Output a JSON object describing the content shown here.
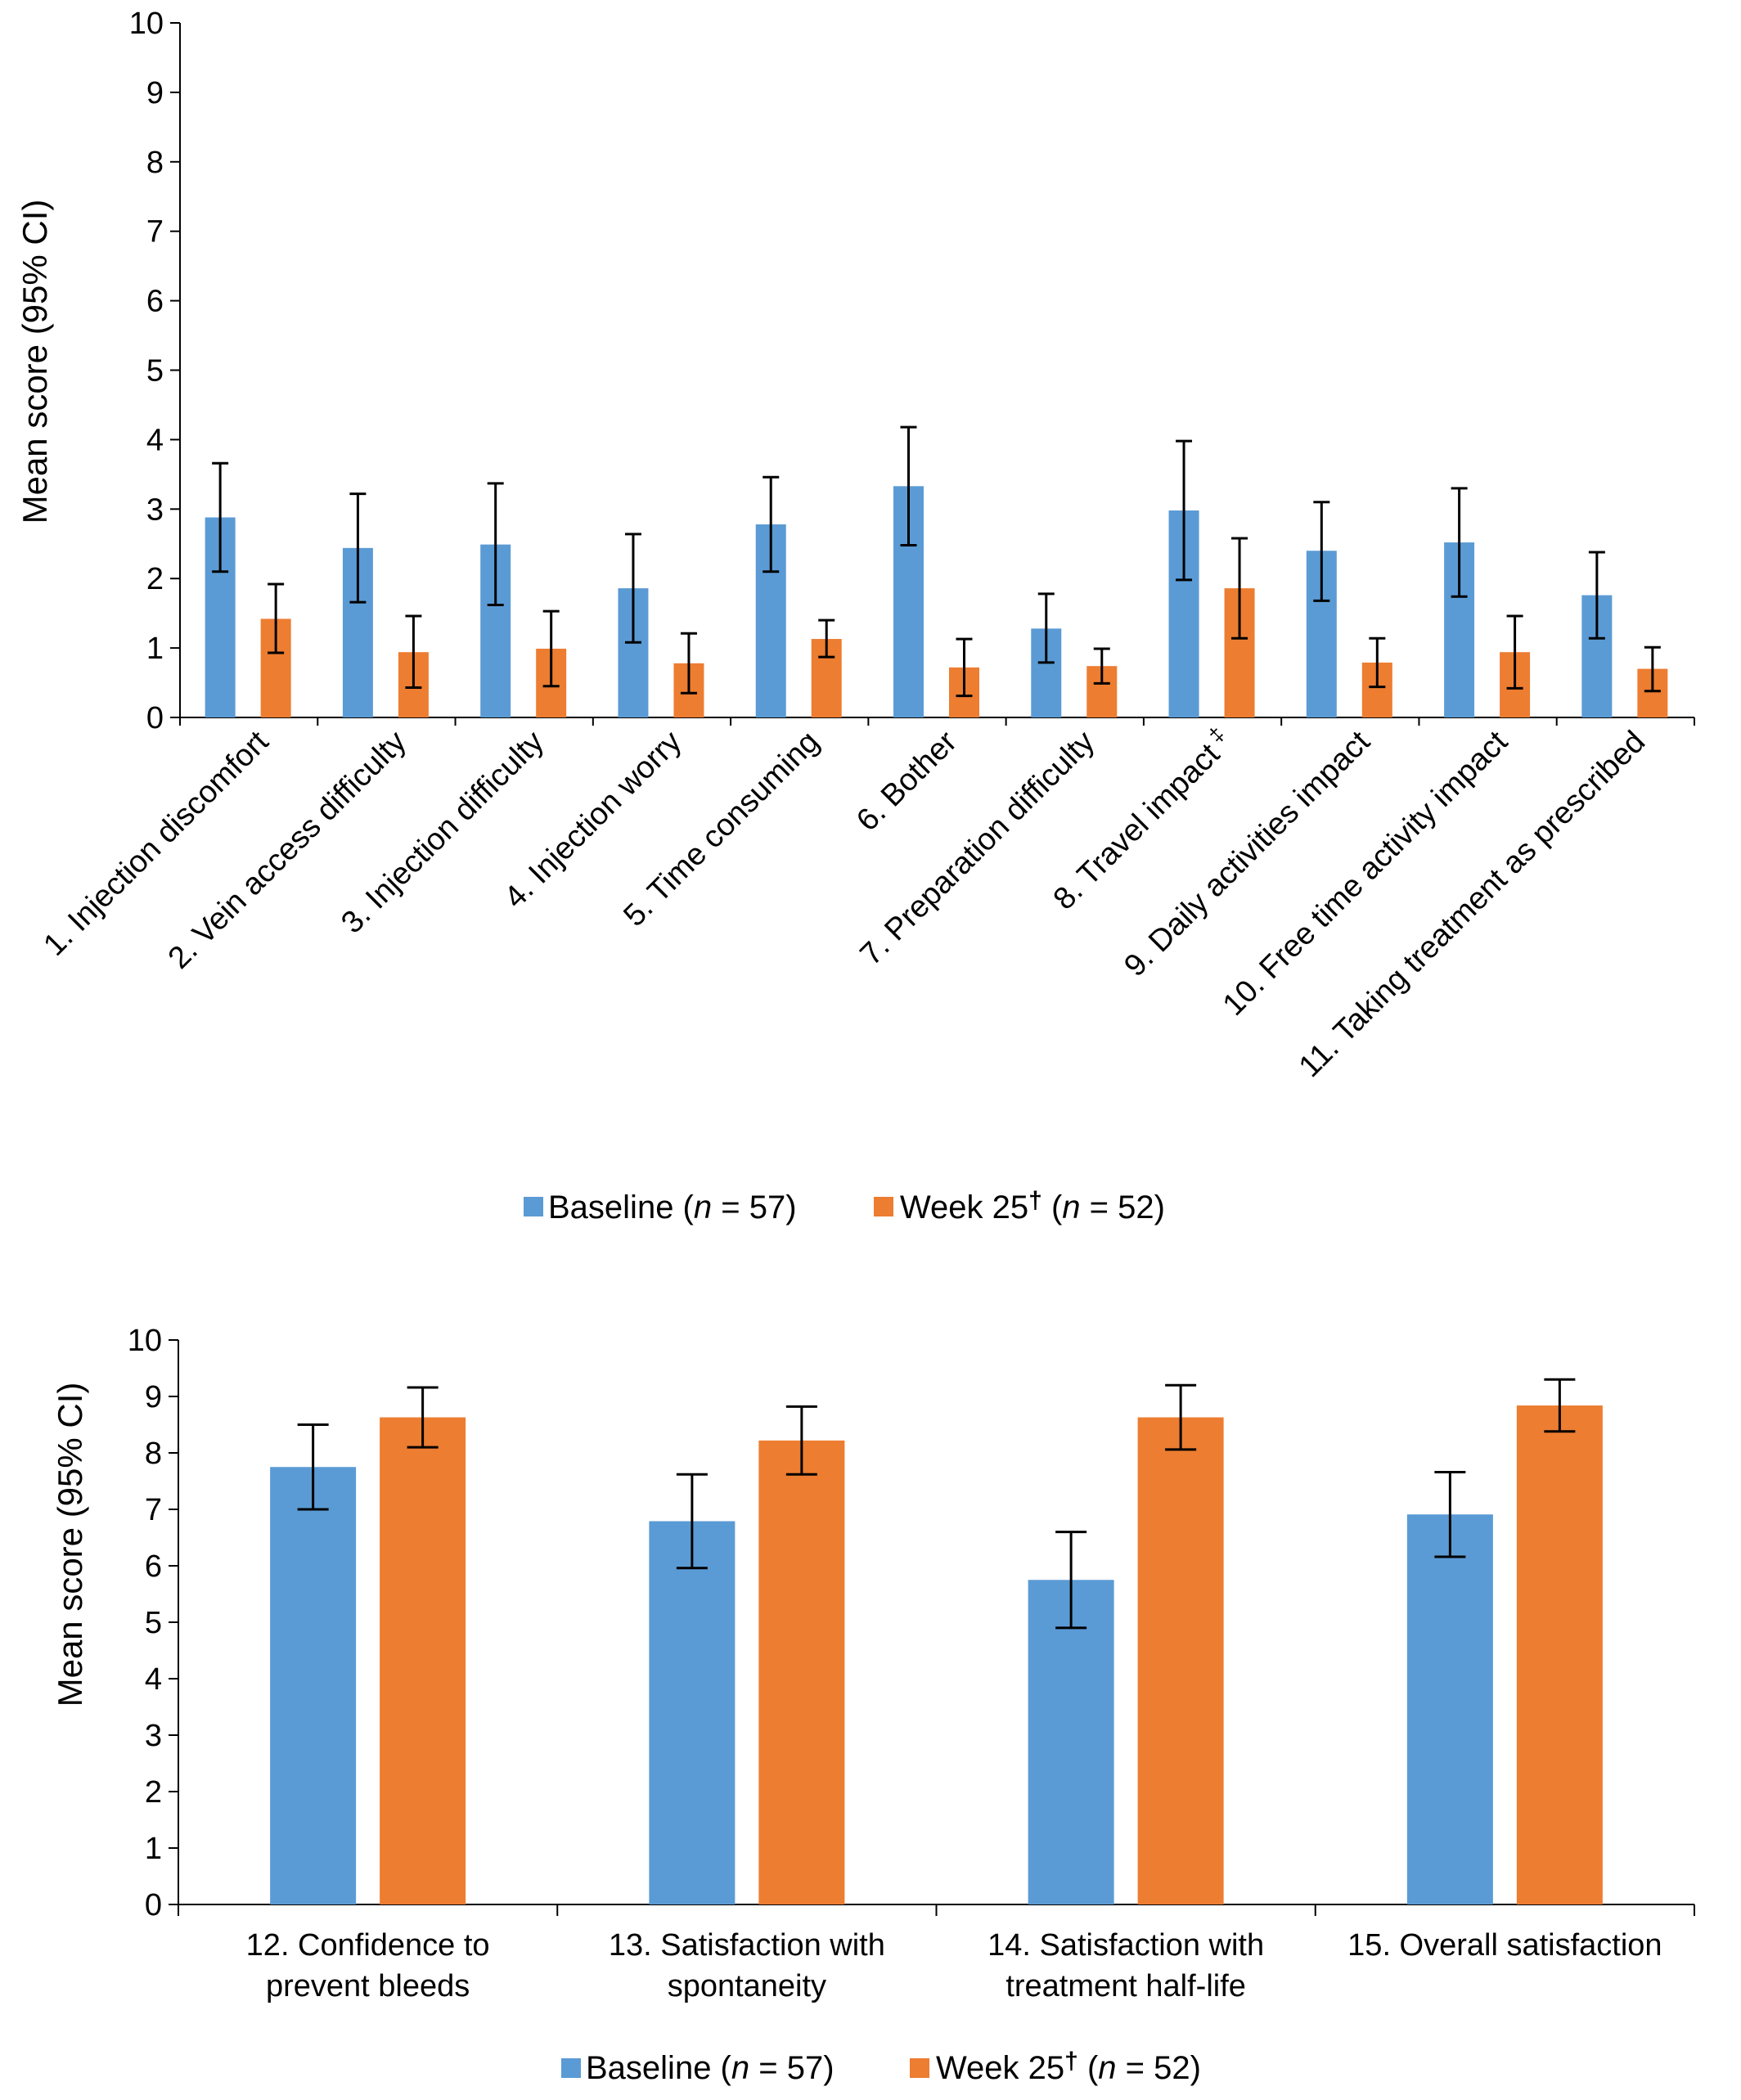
{
  "colors": {
    "baseline": "#5b9bd5",
    "week25": "#ed7d31",
    "axis": "#000000",
    "errorbar": "#000000"
  },
  "legend_text": {
    "baseline_label": "Baseline (",
    "n": "n",
    "baseline_n": " = 57)",
    "week_label": "Week 25",
    "dagger": "†",
    "week_open": " (",
    "week_n": " = 52)"
  },
  "chart_data": [
    {
      "type": "bar",
      "ylabel": "Mean score (95% CI)",
      "ylim": [
        0,
        10
      ],
      "yticks": [
        "0",
        "1",
        "2",
        "3",
        "4",
        "5",
        "6",
        "7",
        "8",
        "9",
        "10"
      ],
      "grid": false,
      "legend_position": "bottom",
      "categories": [
        "1. Injection discomfort",
        "2. Vein access difficulty",
        "3. Injection difficulty",
        "4. Injection worry",
        "5. Time consuming",
        "6. Bother",
        "7. Preparation difficulty",
        "8. Travel impact",
        "9. Daily activities impact",
        "10. Free time activity impact",
        "11. Taking treatment as prescribed"
      ],
      "category_superscripts": [
        "",
        "",
        "",
        "",
        "",
        "",
        "",
        "‡",
        "",
        "",
        ""
      ],
      "series": [
        {
          "name": "Baseline (n = 57)",
          "values": [
            2.88,
            2.44,
            2.49,
            1.86,
            2.78,
            3.33,
            1.28,
            2.98,
            2.4,
            2.52,
            1.76
          ],
          "ci_low": [
            2.1,
            1.66,
            1.62,
            1.08,
            2.1,
            2.48,
            0.79,
            1.98,
            1.68,
            1.74,
            1.14
          ],
          "ci_high": [
            3.66,
            3.22,
            3.37,
            2.64,
            3.46,
            4.18,
            1.78,
            3.98,
            3.1,
            3.3,
            2.38
          ]
        },
        {
          "name": "Week 25† (n = 52)",
          "values": [
            1.42,
            0.94,
            0.99,
            0.78,
            1.13,
            0.72,
            0.74,
            1.86,
            0.79,
            0.94,
            0.7
          ],
          "ci_low": [
            0.93,
            0.43,
            0.45,
            0.35,
            0.87,
            0.31,
            0.49,
            1.14,
            0.44,
            0.42,
            0.38
          ],
          "ci_high": [
            1.92,
            1.46,
            1.53,
            1.21,
            1.4,
            1.13,
            0.99,
            2.58,
            1.14,
            1.46,
            1.01
          ]
        }
      ]
    },
    {
      "type": "bar",
      "ylabel": "Mean score (95% CI)",
      "ylim": [
        0,
        10
      ],
      "yticks": [
        "0",
        "1",
        "2",
        "3",
        "4",
        "5",
        "6",
        "7",
        "8",
        "9",
        "10"
      ],
      "grid": false,
      "legend_position": "bottom",
      "categories": [
        [
          "12. Confidence to",
          "prevent bleeds"
        ],
        [
          "13. Satisfaction with",
          "spontaneity"
        ],
        [
          "14. Satisfaction with",
          "treatment half-life"
        ],
        [
          "15. Overall satisfaction"
        ]
      ],
      "series": [
        {
          "name": "Baseline (n = 57)",
          "values": [
            7.75,
            6.79,
            5.75,
            6.91
          ],
          "ci_low": [
            7.0,
            5.96,
            4.9,
            6.16
          ],
          "ci_high": [
            8.5,
            7.62,
            6.6,
            7.66
          ]
        },
        {
          "name": "Week 25† (n = 52)",
          "values": [
            8.63,
            8.22,
            8.63,
            8.84
          ],
          "ci_low": [
            8.1,
            7.62,
            8.06,
            8.38
          ],
          "ci_high": [
            9.16,
            8.82,
            9.2,
            9.3
          ]
        }
      ]
    }
  ]
}
